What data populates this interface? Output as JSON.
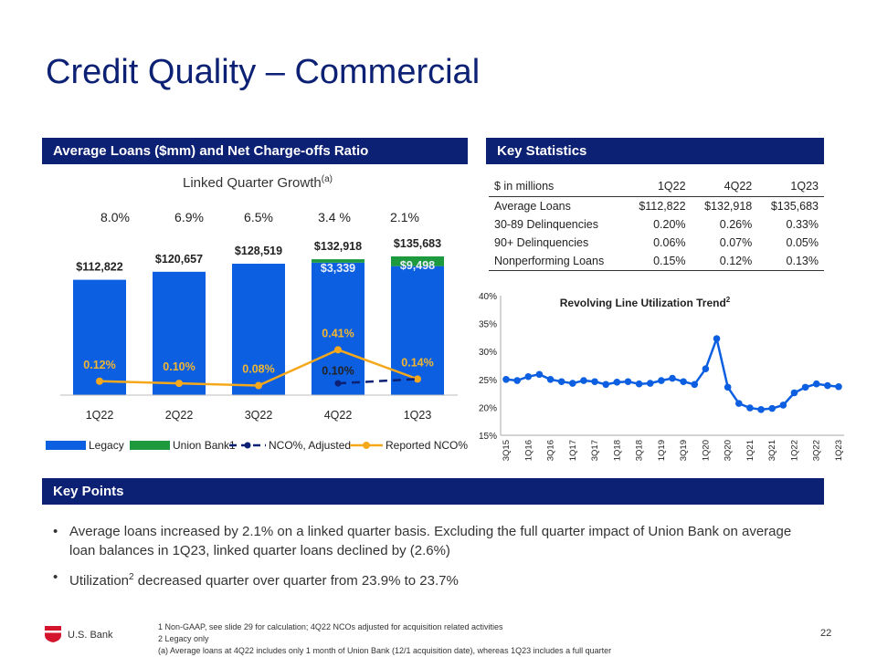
{
  "title": "Credit Quality – Commercial",
  "left_header": "Average Loans ($mm) and Net Charge-offs Ratio",
  "right_header": "Key Statistics",
  "key_header": "Key Points",
  "linked_quarter": {
    "label": "Linked Quarter Growth",
    "sup": "(a)"
  },
  "chart_data": [
    {
      "type": "bar",
      "title": "Average Loans ($mm) and Net Charge-offs Ratio",
      "categories": [
        "1Q22",
        "2Q22",
        "3Q22",
        "4Q22",
        "1Q23"
      ],
      "growth_labels": [
        "8.0%",
        "6.9%",
        "6.5%",
        "3.4 %",
        "2.1%"
      ],
      "total_labels": [
        "$112,822",
        "$120,657",
        "$128,519",
        "$132,918",
        "$135,683"
      ],
      "series": [
        {
          "name": "Legacy",
          "values": [
            112822,
            120657,
            128519,
            129579,
            126185
          ],
          "color": "#0b5fe0"
        },
        {
          "name": "Union Bank",
          "legend_label": "Union Bank1",
          "values": [
            0,
            0,
            0,
            3339,
            9498
          ],
          "labels": [
            "",
            "",
            "",
            "$3,339",
            "$9,498"
          ],
          "color": "#1e9a3e"
        }
      ],
      "lines": [
        {
          "name": "NCO%, Adjusted",
          "values": [
            null,
            null,
            null,
            0.1,
            0.14
          ],
          "labels": [
            "",
            "",
            "",
            "0.10%",
            ""
          ],
          "color": "#0c2074",
          "dash": true
        },
        {
          "name": "Reported NCO%",
          "values": [
            0.12,
            0.1,
            0.08,
            0.41,
            0.14
          ],
          "labels": [
            "0.12%",
            "0.10%",
            "0.08%",
            "0.41%",
            "0.14%"
          ],
          "color": "#f5a81c"
        }
      ],
      "ylim": [
        0,
        135683
      ],
      "nco_ylim": [
        0,
        0.8
      ]
    },
    {
      "type": "line",
      "title": "Revolving Line Utilization Trend",
      "title_sup": "2",
      "x": [
        "3Q15",
        "4Q15",
        "1Q16",
        "2Q16",
        "3Q16",
        "4Q16",
        "1Q17",
        "2Q17",
        "3Q17",
        "4Q17",
        "1Q18",
        "2Q18",
        "3Q18",
        "4Q18",
        "1Q19",
        "2Q19",
        "3Q19",
        "4Q19",
        "1Q20",
        "2Q20",
        "3Q20",
        "4Q20",
        "1Q21",
        "2Q21",
        "3Q21",
        "4Q21",
        "1Q22",
        "2Q22",
        "3Q22",
        "4Q22",
        "1Q23"
      ],
      "x_tick_labels": [
        "3Q15",
        "1Q16",
        "3Q16",
        "1Q17",
        "3Q17",
        "1Q18",
        "3Q18",
        "1Q19",
        "3Q19",
        "1Q20",
        "3Q20",
        "1Q21",
        "3Q21",
        "1Q22",
        "3Q22",
        "1Q23"
      ],
      "values": [
        25.0,
        24.8,
        25.5,
        25.9,
        25.0,
        24.6,
        24.3,
        24.8,
        24.6,
        24.1,
        24.5,
        24.6,
        24.2,
        24.3,
        24.8,
        25.2,
        24.6,
        24.1,
        26.9,
        32.3,
        23.6,
        20.7,
        19.9,
        19.6,
        19.8,
        20.4,
        22.6,
        23.6,
        24.2,
        23.9,
        23.7
      ],
      "y_ticks": [
        "15%",
        "20%",
        "25%",
        "30%",
        "35%",
        "40%"
      ],
      "ylim": [
        15,
        40
      ],
      "color": "#0b5fe0"
    }
  ],
  "stats": {
    "headers": [
      "$ in millions",
      "1Q22",
      "4Q22",
      "1Q23"
    ],
    "rows": [
      [
        "Average Loans",
        "$112,822",
        "$132,918",
        "$135,683"
      ],
      [
        "30-89 Delinquencies",
        "0.20%",
        "0.26%",
        "0.33%"
      ],
      [
        "90+ Delinquencies",
        "0.06%",
        "0.07%",
        "0.05%"
      ],
      [
        "Nonperforming Loans",
        "0.15%",
        "0.12%",
        "0.13%"
      ]
    ]
  },
  "key_points": {
    "p1": "Average loans increased by 2.1% on a linked quarter basis.  Excluding the full quarter impact of Union Bank on average loan balances in 1Q23, linked quarter loans declined by (2.6%)",
    "p2_a": "Utilization",
    "p2_sup": "2",
    "p2_b": " decreased quarter over quarter from 23.9% to 23.7%"
  },
  "footnotes": [
    "1 Non-GAAP, see slide 29 for calculation; 4Q22 NCOs adjusted for acquisition related activities",
    "2 Legacy only",
    "(a) Average loans at 4Q22 includes only 1 month of Union Bank (12/1 acquisition date),  whereas 1Q23 includes a full  quarter"
  ],
  "logo_text": "U.S. Bank",
  "page_number": "22",
  "colors": {
    "navy": "#0c2074",
    "blue": "#0b5fe0",
    "green": "#1e9a3e",
    "gold": "#f5a81c",
    "red": "#d4142c"
  }
}
